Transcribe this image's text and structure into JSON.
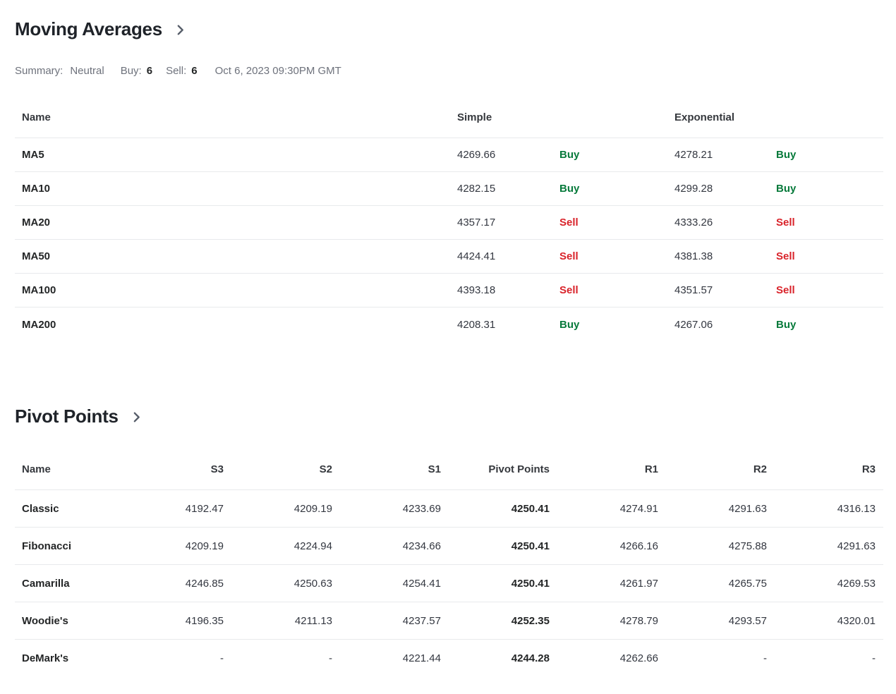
{
  "colors": {
    "buy": "#077a3b",
    "sell": "#d9232a",
    "divider": "#e8eaec",
    "muted_text": "#6e727c",
    "chevron": "#565d69"
  },
  "moving_averages": {
    "title": "Moving Averages",
    "chevron_icon": "chevron-right",
    "summary": {
      "label": "Summary:",
      "value": "Neutral",
      "buy_label": "Buy:",
      "buy_count": "6",
      "sell_label": "Sell:",
      "sell_count": "6",
      "timestamp": "Oct 6, 2023 09:30PM GMT"
    },
    "columns": {
      "name": "Name",
      "simple": "Simple",
      "exponential": "Exponential"
    },
    "rows": [
      {
        "name": "MA5",
        "simple": "4269.66",
        "simple_signal": "Buy",
        "exponential": "4278.21",
        "exponential_signal": "Buy"
      },
      {
        "name": "MA10",
        "simple": "4282.15",
        "simple_signal": "Buy",
        "exponential": "4299.28",
        "exponential_signal": "Buy"
      },
      {
        "name": "MA20",
        "simple": "4357.17",
        "simple_signal": "Sell",
        "exponential": "4333.26",
        "exponential_signal": "Sell"
      },
      {
        "name": "MA50",
        "simple": "4424.41",
        "simple_signal": "Sell",
        "exponential": "4381.38",
        "exponential_signal": "Sell"
      },
      {
        "name": "MA100",
        "simple": "4393.18",
        "simple_signal": "Sell",
        "exponential": "4351.57",
        "exponential_signal": "Sell"
      },
      {
        "name": "MA200",
        "simple": "4208.31",
        "simple_signal": "Buy",
        "exponential": "4267.06",
        "exponential_signal": "Buy"
      }
    ]
  },
  "pivot_points": {
    "title": "Pivot Points",
    "chevron_icon": "chevron-right",
    "columns": [
      "Name",
      "S3",
      "S2",
      "S1",
      "Pivot Points",
      "R1",
      "R2",
      "R3"
    ],
    "pivot_column_index": 3,
    "rows": [
      {
        "name": "Classic",
        "values": [
          "4192.47",
          "4209.19",
          "4233.69",
          "4250.41",
          "4274.91",
          "4291.63",
          "4316.13"
        ]
      },
      {
        "name": "Fibonacci",
        "values": [
          "4209.19",
          "4224.94",
          "4234.66",
          "4250.41",
          "4266.16",
          "4275.88",
          "4291.63"
        ]
      },
      {
        "name": "Camarilla",
        "values": [
          "4246.85",
          "4250.63",
          "4254.41",
          "4250.41",
          "4261.97",
          "4265.75",
          "4269.53"
        ]
      },
      {
        "name": "Woodie's",
        "values": [
          "4196.35",
          "4211.13",
          "4237.57",
          "4252.35",
          "4278.79",
          "4293.57",
          "4320.01"
        ]
      },
      {
        "name": "DeMark's",
        "values": [
          "-",
          "-",
          "4221.44",
          "4244.28",
          "4262.66",
          "-",
          "-"
        ]
      }
    ]
  }
}
